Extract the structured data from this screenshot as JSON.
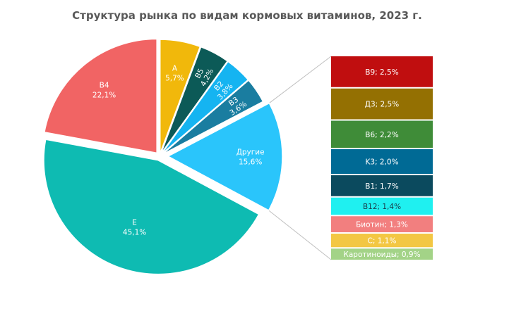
{
  "chart_data": {
    "type": "bar-of-pie",
    "title": "Структура рынка по видам кормовых витаминов, 2023 г.",
    "pie": [
      {
        "name": "A",
        "value": 5.7,
        "value_label": "5,7%",
        "color": "#F1B80B"
      },
      {
        "name": "B5",
        "value": 4.2,
        "value_label": "4,2%",
        "color": "#0C5A57"
      },
      {
        "name": "B2",
        "value": 3.8,
        "value_label": "3,8%",
        "color": "#15B4F1"
      },
      {
        "name": "B3",
        "value": 3.6,
        "value_label": "3,6%",
        "color": "#1A7DA0"
      },
      {
        "name": "Другие",
        "value": 15.6,
        "value_label": "15,6%",
        "color": "#2AC5FB"
      },
      {
        "name": "E",
        "value": 45.1,
        "value_label": "45,1%",
        "color": "#0EBBB2"
      },
      {
        "name": "B4",
        "value": 22.1,
        "value_label": "22,1%",
        "color": "#F16464"
      }
    ],
    "others_breakdown": [
      {
        "label": "B9; 2,5%",
        "value": 2.5,
        "color": "#C00E0F",
        "text_color": "#ffffff"
      },
      {
        "label": "Д3; 2,5%",
        "value": 2.5,
        "color": "#947002",
        "text_color": "#ffffff"
      },
      {
        "label": "B6; 2,2%",
        "value": 2.2,
        "color": "#3F8C38",
        "text_color": "#ffffff"
      },
      {
        "label": "K3; 2,0%",
        "value": 2.0,
        "color": "#006A95",
        "text_color": "#ffffff"
      },
      {
        "label": "B1; 1,7%",
        "value": 1.7,
        "color": "#0B4A5E",
        "text_color": "#ffffff"
      },
      {
        "label": "B12; 1,4%",
        "value": 1.4,
        "color": "#1FF0F0",
        "text_color": "#1a3a48"
      },
      {
        "label": "Биотин; 1,3%",
        "value": 1.3,
        "color": "#F27F7F",
        "text_color": "#ffffff"
      },
      {
        "label": "C; 1,1%",
        "value": 1.1,
        "color": "#F3C743",
        "text_color": "#ffffff"
      },
      {
        "label": "Каротиноиды; 0,9%",
        "value": 0.9,
        "color": "#A3D387",
        "text_color": "#ffffff"
      }
    ]
  }
}
